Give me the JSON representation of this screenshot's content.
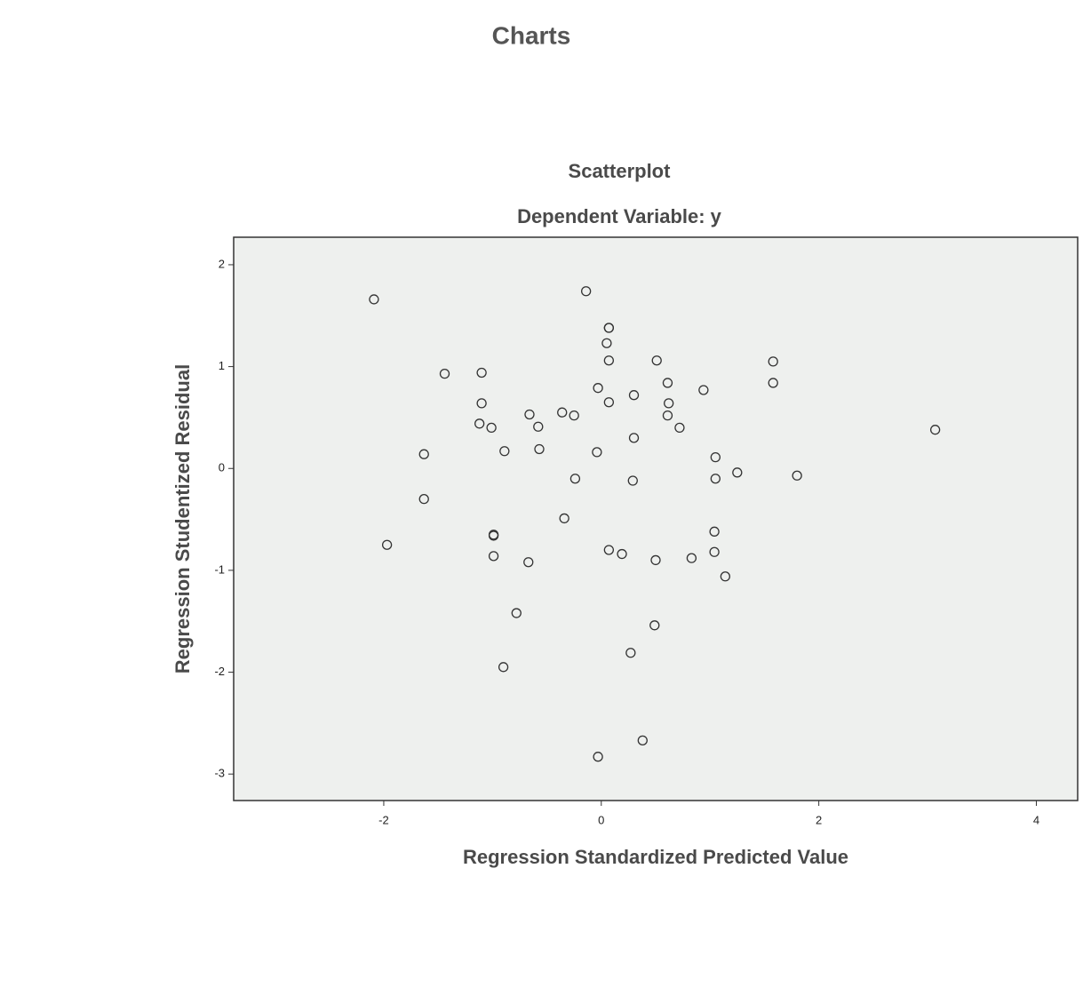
{
  "heading": "Charts",
  "chart_data": {
    "type": "scatter",
    "title": "Scatterplot",
    "subtitle": "Dependent Variable: y",
    "x_label": "Regression Standardized Predicted Value",
    "y_label": "Regression Studentized Residual",
    "color": "#333333",
    "x": [
      -2.09,
      -1.44,
      -1.1,
      -1.1,
      -1.12,
      -1.01,
      -0.89,
      -1.63,
      -1.63,
      -1.97,
      -0.99,
      -0.99,
      -0.99,
      -0.9,
      -0.78,
      -0.67,
      -0.66,
      -0.58,
      -0.57,
      -0.36,
      -0.25,
      -0.24,
      -0.34,
      -0.14,
      -0.03,
      -0.04,
      0.07,
      0.07,
      0.05,
      0.07,
      0.07,
      0.07,
      0.19,
      0.3,
      0.3,
      0.29,
      0.27,
      0.38,
      -0.03,
      0.51,
      0.61,
      0.62,
      0.61,
      0.72,
      0.5,
      0.49,
      0.83,
      0.94,
      1.05,
      1.05,
      1.04,
      1.04,
      1.14,
      1.25,
      1.58,
      1.58,
      1.8,
      3.07
    ],
    "values": [
      1.66,
      0.93,
      0.94,
      0.64,
      0.44,
      0.4,
      0.17,
      0.14,
      -0.3,
      -0.75,
      -0.65,
      -0.66,
      -0.86,
      -1.95,
      -1.42,
      -0.92,
      0.53,
      0.41,
      0.19,
      0.55,
      0.52,
      -0.1,
      -0.49,
      1.74,
      0.79,
      0.16,
      1.38,
      1.38,
      1.23,
      1.06,
      0.65,
      -0.8,
      -0.84,
      0.72,
      0.3,
      -0.12,
      -1.81,
      -2.67,
      -2.83,
      1.06,
      0.84,
      0.64,
      0.52,
      0.4,
      -0.9,
      -1.54,
      -0.88,
      0.77,
      0.11,
      -0.1,
      -0.62,
      -0.82,
      -1.06,
      -0.04,
      1.05,
      0.84,
      -0.07,
      0.38
    ],
    "xlim": [
      -3.38,
      4.38
    ],
    "ylim": [
      -3.26,
      2.27
    ],
    "xticks": [
      -2,
      0,
      2,
      4
    ],
    "yticks": [
      2,
      1,
      0,
      -1,
      -2,
      -3
    ]
  }
}
